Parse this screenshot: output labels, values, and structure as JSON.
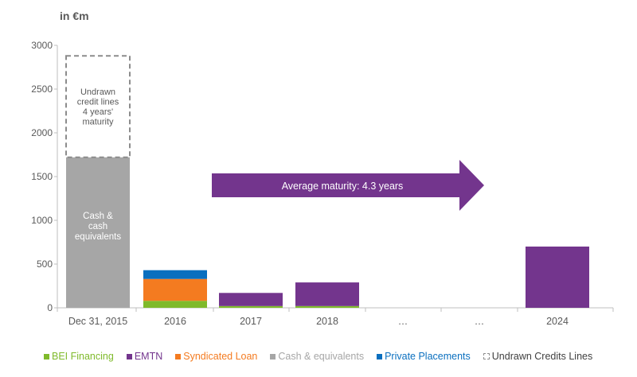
{
  "colors": {
    "bei": "#7fba2b",
    "emtn": "#73358d",
    "syndicated": "#f47b20",
    "cash": "#a6a6a6",
    "private": "#0a6fbf",
    "undrawn": "#8c8c8c",
    "axis_text": "#595959"
  },
  "chart_data": {
    "type": "bar",
    "stacked": true,
    "unit_label": "in €m",
    "categories": [
      "Dec 31, 2015",
      "2016",
      "2017",
      "2018",
      "…",
      "…",
      "2024"
    ],
    "ylim": [
      0,
      3000
    ],
    "yticks": [
      0,
      500,
      1000,
      1500,
      2000,
      2500,
      3000
    ],
    "grid": false,
    "legend_position": "bottom",
    "series": [
      {
        "name": "BEI Financing",
        "key": "bei",
        "values": [
          0,
          80,
          20,
          20,
          0,
          0,
          0
        ]
      },
      {
        "name": "EMTN",
        "key": "emtn",
        "values": [
          0,
          0,
          150,
          270,
          0,
          0,
          700
        ]
      },
      {
        "name": "Syndicated Loan",
        "key": "syndicated",
        "values": [
          0,
          250,
          0,
          0,
          0,
          0,
          0
        ]
      },
      {
        "name": "Cash & equivalents",
        "key": "cash",
        "values": [
          1720,
          0,
          0,
          0,
          0,
          0,
          0
        ]
      },
      {
        "name": "Private Placements",
        "key": "private",
        "values": [
          0,
          100,
          0,
          0,
          0,
          0,
          0
        ]
      },
      {
        "name": "Undrawn Credits Lines",
        "key": "undrawn",
        "values": [
          1160,
          0,
          0,
          0,
          0,
          0,
          0
        ],
        "style": "dashed"
      }
    ],
    "annotations": {
      "cash_label": [
        "Cash &",
        "cash",
        "equivalents"
      ],
      "undrawn_label": [
        "Undrawn",
        "credit lines",
        "4 years'",
        "maturity"
      ],
      "arrow_label": "Average maturity: 4.3 years"
    }
  }
}
